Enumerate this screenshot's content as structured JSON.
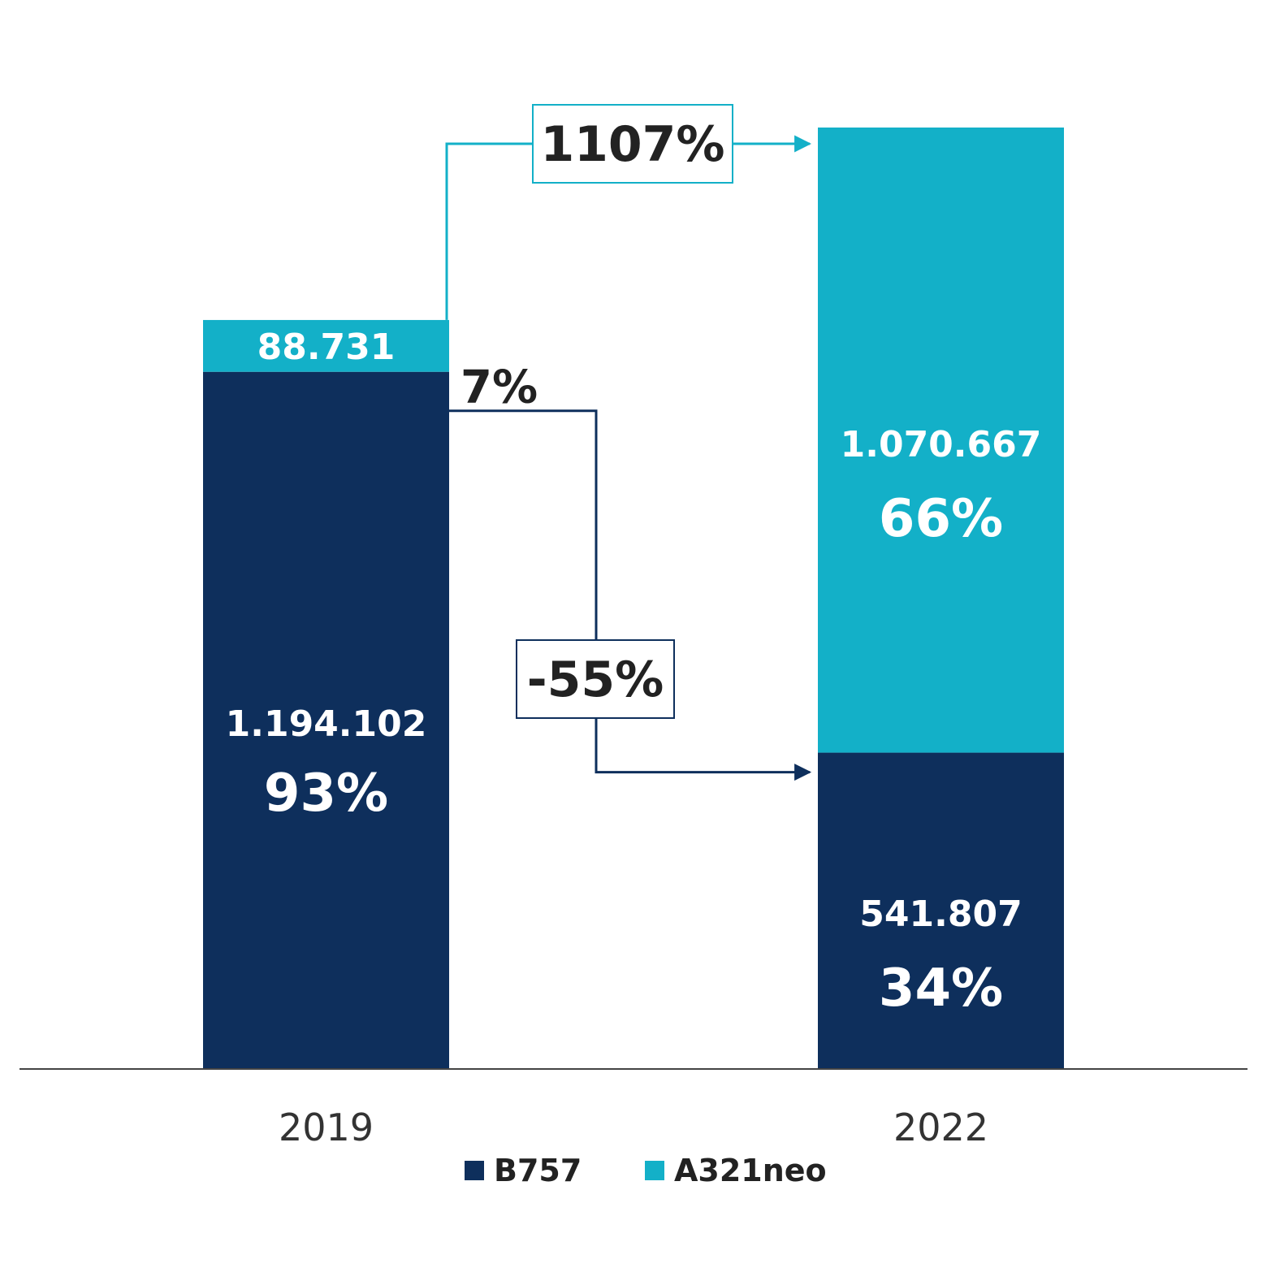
{
  "chart_data": {
    "type": "bar",
    "stacked": true,
    "categories": [
      "2019",
      "2022"
    ],
    "series": [
      {
        "name": "B757",
        "color": "#0e2f5c",
        "values": [
          1194102,
          541807
        ],
        "value_labels": [
          "1.194.102",
          "541.807"
        ],
        "pct_labels": [
          "93%",
          "34%"
        ]
      },
      {
        "name": "A321neo",
        "color": "#13b0c8",
        "values": [
          88731,
          1070667
        ],
        "value_labels": [
          "88.731",
          "1.070.667"
        ],
        "pct_labels": [
          "7%",
          "66%"
        ]
      }
    ],
    "annotations": {
      "a321neo_change": "1107%",
      "b757_change": "-55%"
    },
    "ylim": [
      0,
      1612474
    ],
    "legend_position": "bottom-center",
    "grid": false
  }
}
